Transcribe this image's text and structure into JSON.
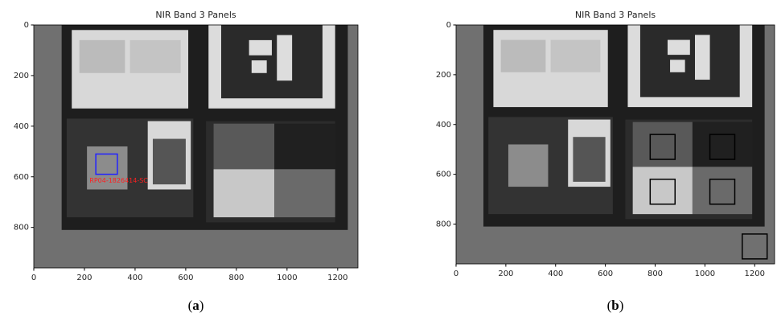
{
  "panels": [
    {
      "title": "NIR Band 3 Panels",
      "caption_open": "(",
      "caption_letter": "a",
      "caption_close": ")",
      "xlim": [
        0,
        1280
      ],
      "ylim": [
        0,
        960
      ],
      "xticks": [
        0,
        200,
        400,
        600,
        800,
        1000,
        1200
      ],
      "yticks": [
        0,
        200,
        400,
        600,
        800
      ],
      "annotation": "RP04-1826414-SC"
    },
    {
      "title": "NIR Band 3 Panels",
      "caption_open": "(",
      "caption_letter": "b",
      "caption_close": ")",
      "xlim": [
        0,
        1280
      ],
      "ylim": [
        0,
        960
      ],
      "xticks": [
        0,
        200,
        400,
        600,
        800,
        1000,
        1200
      ],
      "yticks": [
        0,
        200,
        400,
        600,
        800
      ]
    }
  ]
}
